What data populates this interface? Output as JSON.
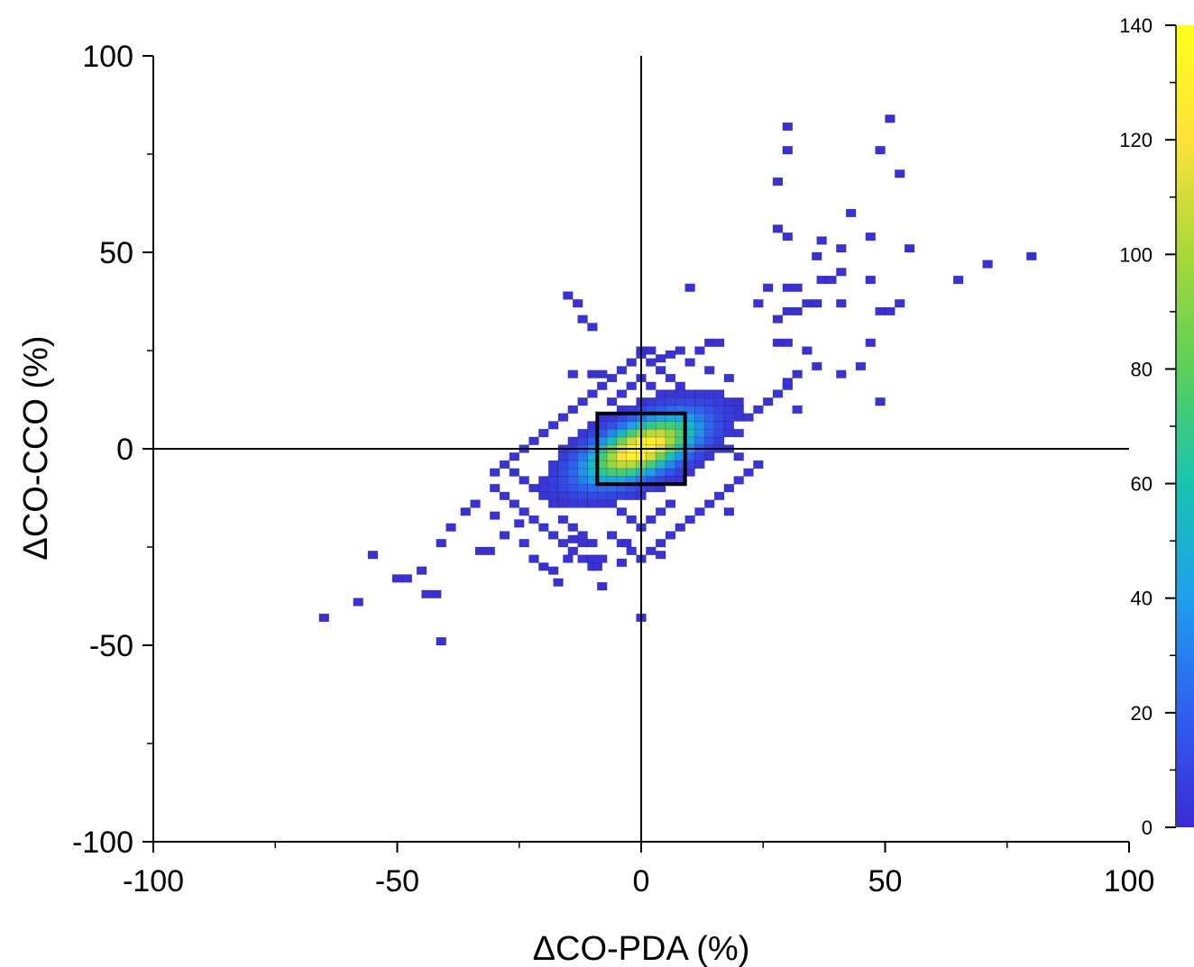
{
  "chart_data": {
    "type": "heatmap",
    "title": "",
    "xlabel": "ΔCO-PDA (%)",
    "ylabel": "ΔCO-CCO (%)",
    "xlim": [
      -100,
      100
    ],
    "ylim": [
      -100,
      100
    ],
    "x_ticks": [
      "-100",
      "-50",
      "0",
      "50",
      "100"
    ],
    "y_ticks": [
      "100",
      "50",
      "0",
      "-50",
      "-100"
    ],
    "colorbar": {
      "range": [
        0,
        140
      ],
      "ticks": [
        "140",
        "120",
        "100",
        "80",
        "60",
        "40",
        "20",
        "0"
      ],
      "colors": [
        "#3a2bd6",
        "#2f5ff0",
        "#1f9fee",
        "#18c4b0",
        "#5bd05a",
        "#a8d83a",
        "#ffe23a",
        "#ffff1a"
      ]
    },
    "bin_size": 2,
    "reference_lines": {
      "x": 0,
      "y": 0
    },
    "highlight_box": {
      "x": [
        -9,
        9
      ],
      "y": [
        -9,
        9
      ]
    },
    "density_core": {
      "center": [
        0,
        0
      ],
      "angle_deg": 31,
      "sigma_major": 8.2,
      "sigma_minor": 3.9,
      "peak": 140,
      "threshold": 3
    },
    "halo_points": [
      [
        -30,
        -10
      ],
      [
        -28,
        -12
      ],
      [
        -26,
        -14
      ],
      [
        -24,
        -16
      ],
      [
        -22,
        -18
      ],
      [
        -20,
        -20
      ],
      [
        -18,
        -22
      ],
      [
        -16,
        -24
      ],
      [
        -14,
        -26
      ],
      [
        -12,
        -28
      ],
      [
        -10,
        -30
      ],
      [
        -8,
        -28
      ],
      [
        -30,
        -6
      ],
      [
        -28,
        -4
      ],
      [
        -26,
        -2
      ],
      [
        -24,
        0
      ],
      [
        -22,
        2
      ],
      [
        -20,
        4
      ],
      [
        -18,
        6
      ],
      [
        -16,
        8
      ],
      [
        -14,
        10
      ],
      [
        -12,
        12
      ],
      [
        -10,
        14
      ],
      [
        -8,
        16
      ],
      [
        -6,
        18
      ],
      [
        -4,
        20
      ],
      [
        -2,
        22
      ],
      [
        0,
        24
      ],
      [
        2,
        22
      ],
      [
        4,
        20
      ],
      [
        6,
        18
      ],
      [
        8,
        16
      ],
      [
        10,
        14
      ],
      [
        12,
        12
      ],
      [
        14,
        10
      ],
      [
        16,
        8
      ],
      [
        18,
        6
      ],
      [
        20,
        4
      ],
      [
        22,
        8
      ],
      [
        24,
        10
      ],
      [
        26,
        12
      ],
      [
        28,
        14
      ],
      [
        30,
        16
      ],
      [
        32,
        10
      ],
      [
        20,
        12
      ],
      [
        18,
        18
      ],
      [
        14,
        20
      ],
      [
        10,
        22
      ],
      [
        6,
        24
      ],
      [
        24,
        -4
      ],
      [
        22,
        -6
      ],
      [
        20,
        -8
      ],
      [
        18,
        -10
      ],
      [
        16,
        -12
      ],
      [
        14,
        -14
      ],
      [
        12,
        -16
      ],
      [
        10,
        -18
      ],
      [
        8,
        -20
      ],
      [
        6,
        -22
      ],
      [
        4,
        -24
      ],
      [
        2,
        -26
      ],
      [
        0,
        -28
      ],
      [
        -2,
        -26
      ],
      [
        -4,
        -24
      ],
      [
        -6,
        -22
      ],
      [
        -18,
        -14
      ],
      [
        -20,
        -12
      ],
      [
        -22,
        -10
      ],
      [
        -24,
        -8
      ],
      [
        -26,
        -6
      ],
      [
        -16,
        -18
      ],
      [
        -14,
        -20
      ],
      [
        -12,
        -22
      ],
      [
        -10,
        -24
      ],
      [
        12,
        6
      ],
      [
        14,
        4
      ],
      [
        16,
        2
      ],
      [
        18,
        0
      ],
      [
        20,
        -2
      ],
      [
        -12,
        -6
      ],
      [
        -14,
        -8
      ],
      [
        -16,
        -10
      ],
      [
        -6,
        12
      ],
      [
        -4,
        14
      ],
      [
        -2,
        16
      ],
      [
        0,
        18
      ],
      [
        2,
        16
      ],
      [
        4,
        14
      ],
      [
        6,
        12
      ],
      [
        -6,
        -14
      ],
      [
        -4,
        -16
      ],
      [
        -2,
        -18
      ],
      [
        0,
        -20
      ],
      [
        2,
        -18
      ],
      [
        4,
        -16
      ],
      [
        6,
        -14
      ],
      [
        -8,
        -12
      ],
      [
        8,
        10
      ],
      [
        10,
        8
      ],
      [
        -10,
        -10
      ],
      [
        -8,
        8
      ],
      [
        8,
        -8
      ]
    ],
    "outliers": [
      [
        -65,
        -43
      ],
      [
        -58,
        -39
      ],
      [
        -55,
        -27
      ],
      [
        -50,
        -33
      ],
      [
        -48,
        -33
      ],
      [
        -45,
        -31
      ],
      [
        -44,
        -37
      ],
      [
        -42,
        -37
      ],
      [
        -41,
        -49
      ],
      [
        -41,
        -24
      ],
      [
        -39,
        -20
      ],
      [
        -36,
        -16
      ],
      [
        -34,
        -14
      ],
      [
        -33,
        -26
      ],
      [
        -31,
        -26
      ],
      [
        -30,
        -17
      ],
      [
        -28,
        -22
      ],
      [
        -25,
        -19
      ],
      [
        -24,
        -24
      ],
      [
        -22,
        -28
      ],
      [
        -20,
        -30
      ],
      [
        -18,
        -31
      ],
      [
        -17,
        -34
      ],
      [
        -15,
        -28
      ],
      [
        -14,
        -23
      ],
      [
        -12,
        -24
      ],
      [
        -10,
        -28
      ],
      [
        -9,
        -30
      ],
      [
        -8,
        -35
      ],
      [
        -4,
        -29
      ],
      [
        -3,
        -24
      ],
      [
        0,
        -43
      ],
      [
        4,
        -27
      ],
      [
        8,
        -20
      ],
      [
        10,
        -18
      ],
      [
        18,
        -16
      ],
      [
        20,
        -8
      ],
      [
        -15,
        39
      ],
      [
        -13,
        37
      ],
      [
        -12,
        33
      ],
      [
        -10,
        31
      ],
      [
        -14,
        19
      ],
      [
        -10,
        19
      ],
      [
        -8,
        19
      ],
      [
        0,
        25
      ],
      [
        2,
        25
      ],
      [
        4,
        23
      ],
      [
        8,
        25
      ],
      [
        12,
        25
      ],
      [
        14,
        27
      ],
      [
        16,
        27
      ],
      [
        10,
        41
      ],
      [
        24,
        37
      ],
      [
        26,
        41
      ],
      [
        28,
        27
      ],
      [
        30,
        27
      ],
      [
        28,
        33
      ],
      [
        30,
        35
      ],
      [
        30,
        41
      ],
      [
        32,
        41
      ],
      [
        32,
        35
      ],
      [
        34,
        37
      ],
      [
        36,
        37
      ],
      [
        34,
        25
      ],
      [
        36,
        21
      ],
      [
        32,
        19
      ],
      [
        30,
        17
      ],
      [
        30,
        82
      ],
      [
        30,
        76
      ],
      [
        28,
        68
      ],
      [
        28,
        56
      ],
      [
        30,
        54
      ],
      [
        36,
        49
      ],
      [
        37,
        53
      ],
      [
        41,
        51
      ],
      [
        41,
        45
      ],
      [
        39,
        43
      ],
      [
        41,
        37
      ],
      [
        37,
        43
      ],
      [
        43,
        60
      ],
      [
        47,
        54
      ],
      [
        49,
        76
      ],
      [
        51,
        84
      ],
      [
        53,
        70
      ],
      [
        55,
        51
      ],
      [
        47,
        43
      ],
      [
        51,
        35
      ],
      [
        53,
        37
      ],
      [
        49,
        35
      ],
      [
        47,
        27
      ],
      [
        45,
        21
      ],
      [
        41,
        19
      ],
      [
        49,
        12
      ],
      [
        65,
        43
      ],
      [
        71,
        47
      ],
      [
        80,
        49
      ]
    ]
  }
}
